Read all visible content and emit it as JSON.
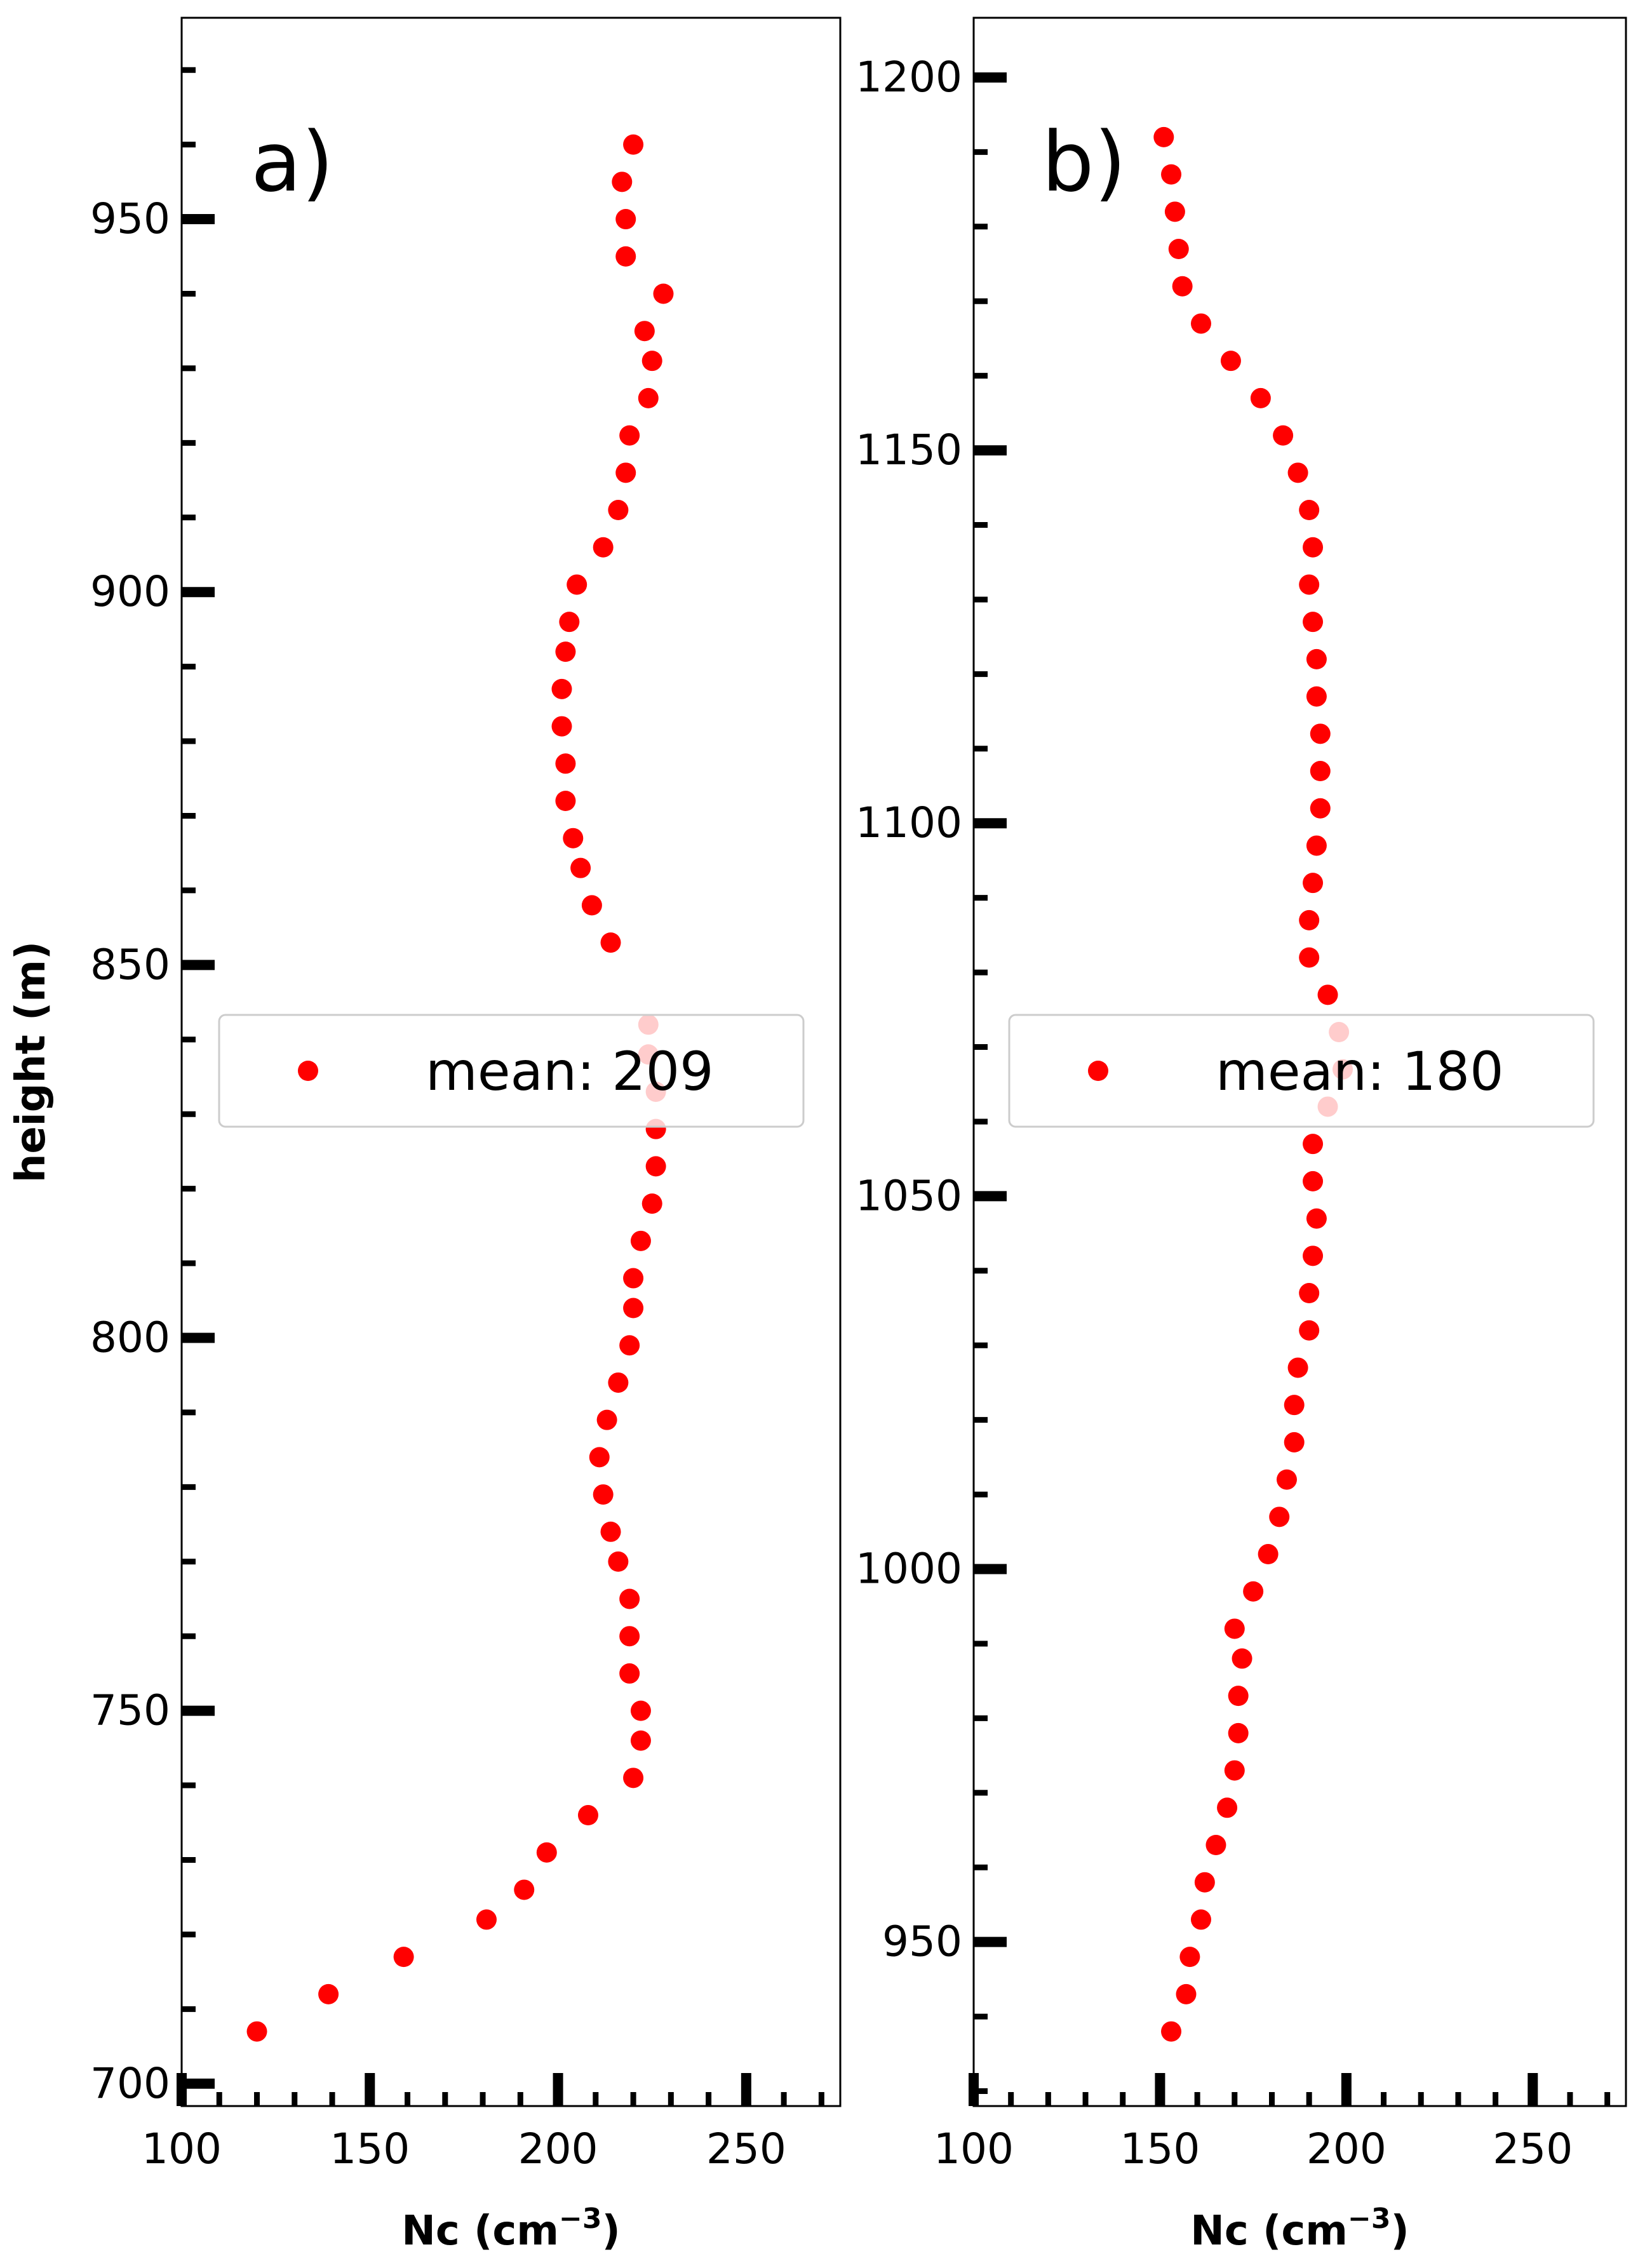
{
  "chart_data": [
    {
      "type": "scatter",
      "panel_label": "a)",
      "xlabel": "Nc (cm",
      "xlabel_sup": "−3",
      "xlabel_close": ")",
      "ylabel": "height (m)",
      "xlim": [
        100,
        275
      ],
      "ylim": [
        697,
        977
      ],
      "xticks": [
        100,
        150,
        200,
        250
      ],
      "yticks": [
        700,
        750,
        800,
        850,
        900,
        950
      ],
      "xtick_labels": [
        "100",
        "150",
        "200",
        "250"
      ],
      "ytick_labels": [
        "700",
        "750",
        "800",
        "850",
        "900",
        "950"
      ],
      "minor_x_step": 10,
      "minor_y_step": 10,
      "marker_color": "#ff0000",
      "legend": {
        "label": "mean: 209",
        "placement": "center-right"
      },
      "series": [
        {
          "x": [
            120,
            139,
            159,
            181,
            191,
            197,
            208,
            220,
            222,
            222,
            219,
            219,
            219,
            216,
            214,
            212,
            211,
            213,
            216,
            219,
            220,
            220,
            222,
            225,
            226,
            226,
            226,
            224,
            224,
            214,
            209,
            206,
            204,
            202,
            202,
            201,
            201,
            202,
            203,
            205,
            212,
            216,
            218,
            219,
            224,
            225,
            223,
            228,
            218,
            218,
            217,
            220
          ],
          "y": [
            707,
            712,
            717,
            722,
            726,
            731,
            736,
            741,
            746,
            750,
            755,
            760,
            765,
            770,
            774,
            779,
            784,
            789,
            794,
            799,
            804,
            808,
            813,
            818,
            823,
            828,
            833,
            838,
            842,
            853,
            858,
            863,
            867,
            872,
            877,
            882,
            887,
            892,
            896,
            901,
            906,
            911,
            916,
            921,
            926,
            931,
            935,
            940,
            945,
            950,
            955,
            960
          ]
        }
      ]
    },
    {
      "type": "scatter",
      "panel_label": "b)",
      "xlabel": "Nc (cm",
      "xlabel_sup": "−3",
      "xlabel_close": ")",
      "xlim": [
        100,
        275
      ],
      "ylim": [
        928,
        1208
      ],
      "xticks": [
        100,
        150,
        200,
        250
      ],
      "yticks": [
        950,
        1000,
        1050,
        1100,
        1150,
        1200
      ],
      "xtick_labels": [
        "100",
        "150",
        "200",
        "250"
      ],
      "ytick_labels": [
        "950",
        "1000",
        "1050",
        "1100",
        "1150",
        "1200"
      ],
      "minor_x_step": 10,
      "minor_y_step": 10,
      "marker_color": "#ff0000",
      "legend": {
        "label": "mean: 180",
        "placement": "center-right"
      },
      "series": [
        {
          "x": [
            153,
            157,
            158,
            161,
            162,
            165,
            168,
            170,
            171,
            171,
            172,
            170,
            175,
            179,
            182,
            184,
            186,
            186,
            187,
            190,
            190,
            191,
            192,
            191,
            191,
            195,
            199,
            198,
            195,
            190,
            190,
            191,
            192,
            193,
            193,
            193,
            192,
            192,
            191,
            190,
            191,
            190,
            187,
            183,
            177,
            169,
            161,
            156,
            155,
            154,
            153,
            151
          ],
          "y": [
            938,
            943,
            948,
            953,
            958,
            963,
            968,
            973,
            978,
            983,
            988,
            992,
            997,
            1002,
            1007,
            1012,
            1017,
            1022,
            1027,
            1032,
            1037,
            1042,
            1047,
            1052,
            1057,
            1062,
            1067,
            1072,
            1077,
            1082,
            1087,
            1092,
            1097,
            1102,
            1107,
            1112,
            1117,
            1122,
            1127,
            1132,
            1137,
            1142,
            1147,
            1152,
            1157,
            1162,
            1167,
            1172,
            1177,
            1182,
            1187,
            1192
          ]
        }
      ]
    }
  ]
}
